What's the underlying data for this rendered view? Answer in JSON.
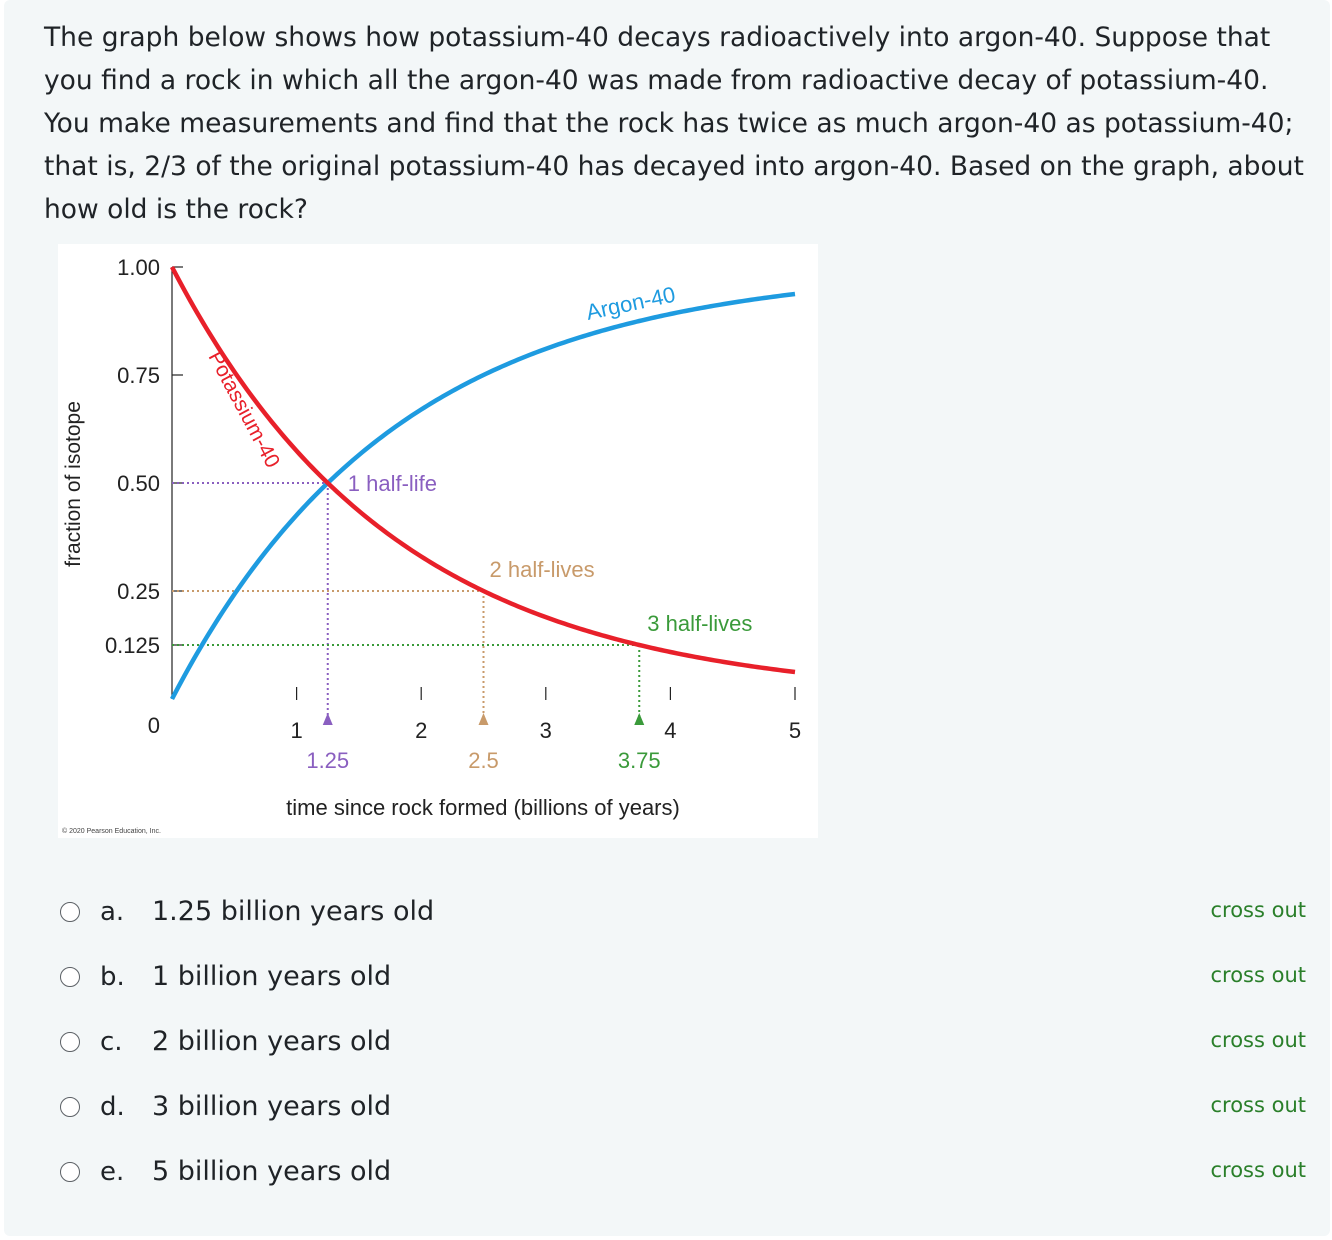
{
  "question": {
    "text": "The graph below shows how potassium-40 decays radioactively into argon-40.  Suppose that you find a rock in which all the argon-40 was made from radioactive decay of potassium-40.  You make measurements and find that the rock has twice as much argon-40 as potassium-40; that is, 2/3 of the original potassium-40 has decayed into argon-40.  Based on the graph, about how old is the rock?"
  },
  "chart_data": {
    "type": "line",
    "xlabel": "time since rock formed (billions of years)",
    "ylabel": "fraction of isotope",
    "xlim": [
      0,
      5
    ],
    "ylim": [
      0,
      1
    ],
    "x_ticks": [
      "1",
      "2",
      "3",
      "4",
      "5"
    ],
    "y_ticks": [
      "1.00",
      "0.75",
      "0.50",
      "0.25",
      "0.125",
      "0"
    ],
    "series": [
      {
        "name": "Potassium-40",
        "color": "#e8202a",
        "half_life": 1.25,
        "x": [
          0,
          1.25,
          2.5,
          3.75,
          5
        ],
        "y": [
          1,
          0.5,
          0.25,
          0.125,
          0.0625
        ]
      },
      {
        "name": "Argon-40",
        "color": "#1e9be0",
        "half_life": 1.25,
        "x": [
          0,
          1.25,
          2.5,
          3.75,
          5
        ],
        "y": [
          0,
          0.5,
          0.75,
          0.875,
          0.9375
        ]
      }
    ],
    "annotations": [
      {
        "label": "1 half-life",
        "x": 1.25,
        "y": 0.5,
        "x_label": "1.25",
        "color": "#8a5fc0"
      },
      {
        "label": "2 half-lives",
        "x": 2.5,
        "y": 0.25,
        "x_label": "2.5",
        "color": "#c89a6a"
      },
      {
        "label": "3 half-lives",
        "x": 3.75,
        "y": 0.125,
        "x_label": "3.75",
        "color": "#3a9a3a"
      }
    ],
    "credit": "© 2020 Pearson Education, Inc."
  },
  "options": [
    {
      "letter": "a.",
      "text": "1.25 billion years old",
      "cross": "cross out"
    },
    {
      "letter": "b.",
      "text": "1 billion years old",
      "cross": "cross out"
    },
    {
      "letter": "c.",
      "text": "2 billion years old",
      "cross": "cross out"
    },
    {
      "letter": "d.",
      "text": "3 billion years old",
      "cross": "cross out"
    },
    {
      "letter": "e.",
      "text": "5 billion years old",
      "cross": "cross out"
    }
  ]
}
